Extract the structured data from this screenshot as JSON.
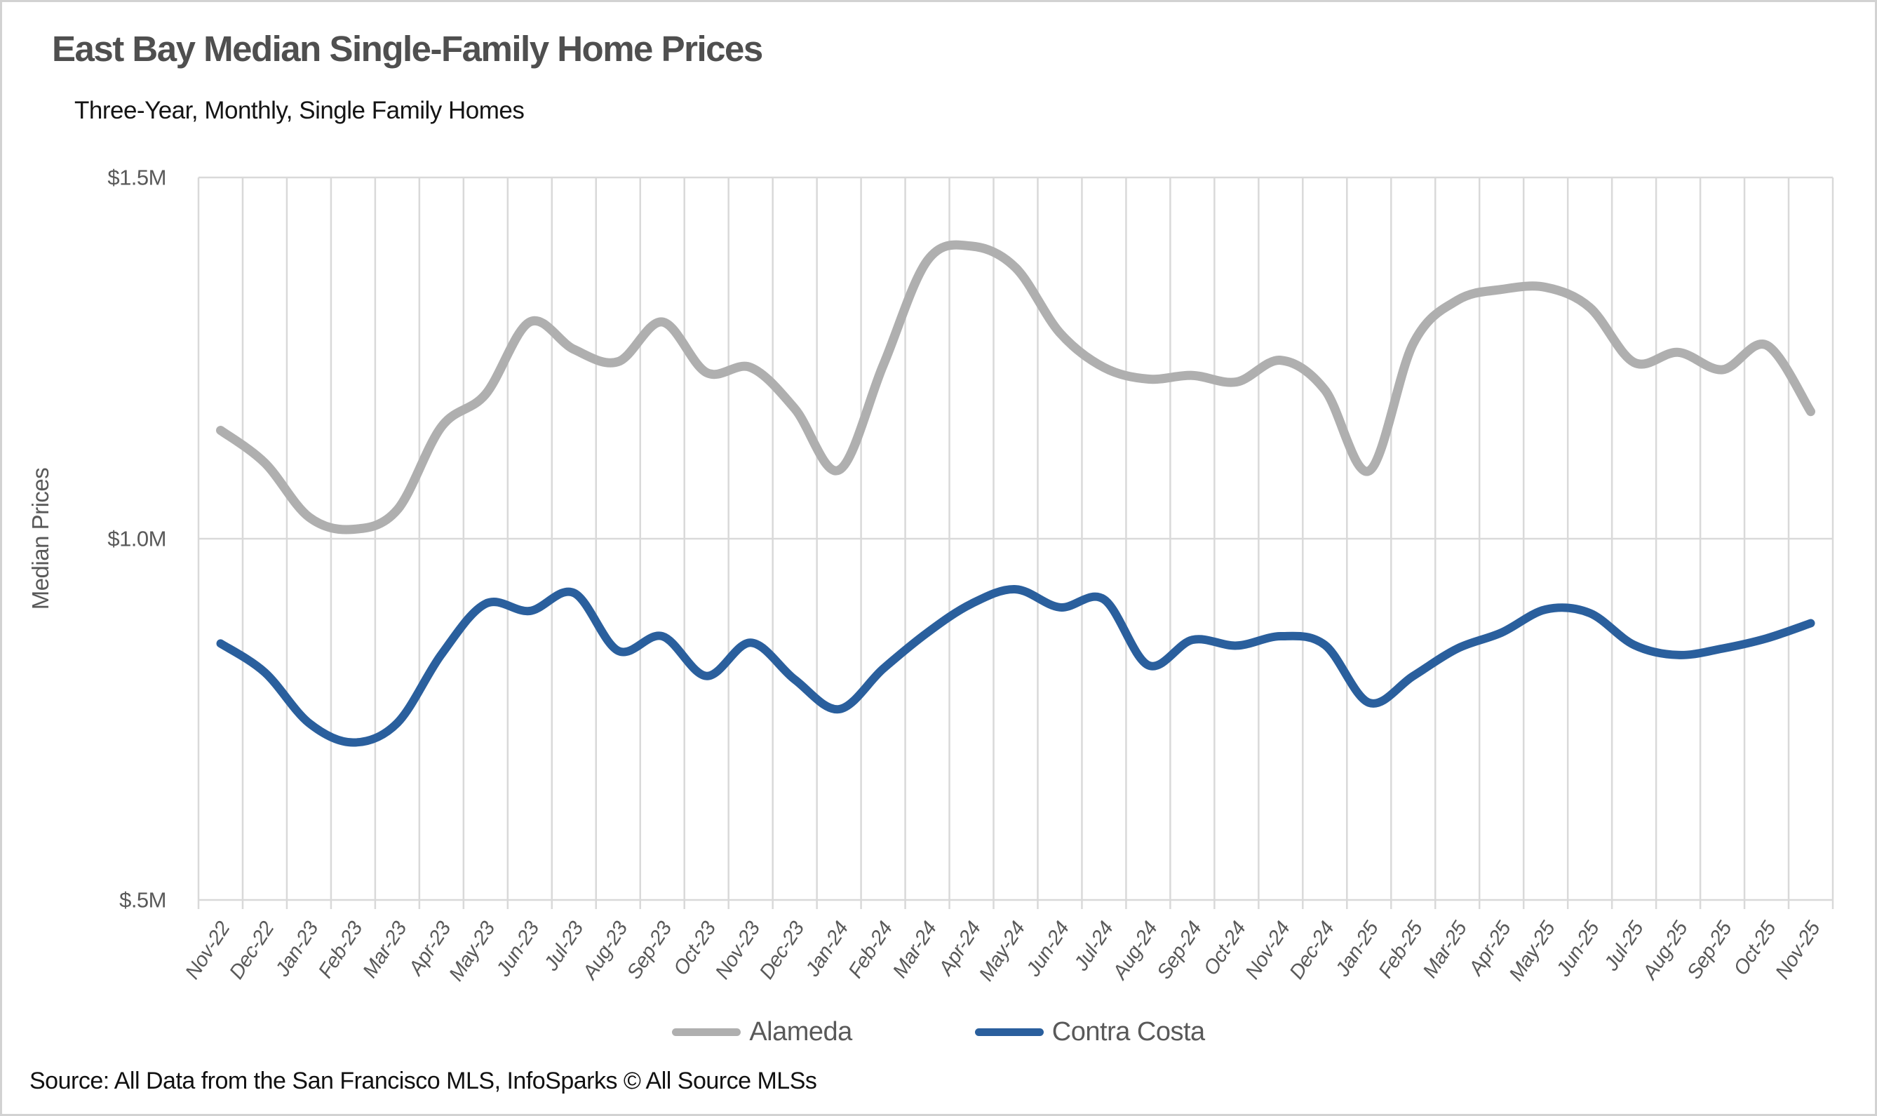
{
  "header": {
    "title": "East Bay Median Single-Family Home Prices",
    "subtitle": "Three-Year, Monthly, Single Family Homes"
  },
  "chart_data": {
    "type": "line",
    "title": "East Bay Median Single-Family Home Prices",
    "subtitle": "Three-Year, Monthly, Single Family Homes",
    "ylabel": "Median Prices",
    "unit": "USD millions",
    "ylim": [
      0.5,
      1.5
    ],
    "grid": "vertical-monthly",
    "legend_position": "bottom",
    "yticks": [
      {
        "value": 1.5,
        "label": "$1.5M"
      },
      {
        "value": 1.0,
        "label": "$1.0M"
      },
      {
        "value": 0.5,
        "label": "$.5M"
      }
    ],
    "categories": [
      "Nov-22",
      "Dec-22",
      "Jan-23",
      "Feb-23",
      "Mar-23",
      "Apr-23",
      "May-23",
      "Jun-23",
      "Jul-23",
      "Aug-23",
      "Sep-23",
      "Oct-23",
      "Nov-23",
      "Dec-23",
      "Jan-24",
      "Feb-24",
      "Mar-24",
      "Apr-24",
      "May-24",
      "Jun-24",
      "Jul-24",
      "Aug-24",
      "Sep-24",
      "Oct-24",
      "Nov-24",
      "Dec-24",
      "Jan-25",
      "Feb-25",
      "Mar-25",
      "Apr-25",
      "May-25",
      "Jun-25",
      "Jul-25",
      "Aug-25",
      "Sep-25",
      "Oct-25",
      "Nov-25"
    ],
    "series": [
      {
        "name": "Alameda",
        "color": "#AFAFAF",
        "values": [
          1.15,
          1.105,
          1.03,
          1.013,
          1.04,
          1.155,
          1.2,
          1.3,
          1.262,
          1.245,
          1.3,
          1.23,
          1.237,
          1.18,
          1.095,
          1.24,
          1.385,
          1.405,
          1.375,
          1.285,
          1.237,
          1.221,
          1.226,
          1.217,
          1.247,
          1.206,
          1.094,
          1.27,
          1.33,
          1.345,
          1.348,
          1.32,
          1.244,
          1.258,
          1.234,
          1.268,
          1.176
        ]
      },
      {
        "name": "Contra Costa",
        "color": "#2A5F9D",
        "values": [
          0.855,
          0.815,
          0.745,
          0.718,
          0.745,
          0.84,
          0.91,
          0.9,
          0.925,
          0.845,
          0.865,
          0.81,
          0.856,
          0.805,
          0.764,
          0.82,
          0.87,
          0.91,
          0.93,
          0.905,
          0.916,
          0.825,
          0.86,
          0.852,
          0.865,
          0.853,
          0.773,
          0.81,
          0.848,
          0.87,
          0.902,
          0.897,
          0.853,
          0.839,
          0.848,
          0.862,
          0.883
        ]
      }
    ],
    "colors": {
      "gridline": "#d9d9d9",
      "axis_text": "#595959"
    }
  },
  "legend": {
    "items": [
      {
        "label": "Alameda",
        "color": "#AFAFAF"
      },
      {
        "label": "Contra Costa",
        "color": "#2A5F9D"
      }
    ]
  },
  "footer": {
    "source": "Source: All Data from the San Francisco MLS, InfoSparks © All Source MLSs"
  }
}
